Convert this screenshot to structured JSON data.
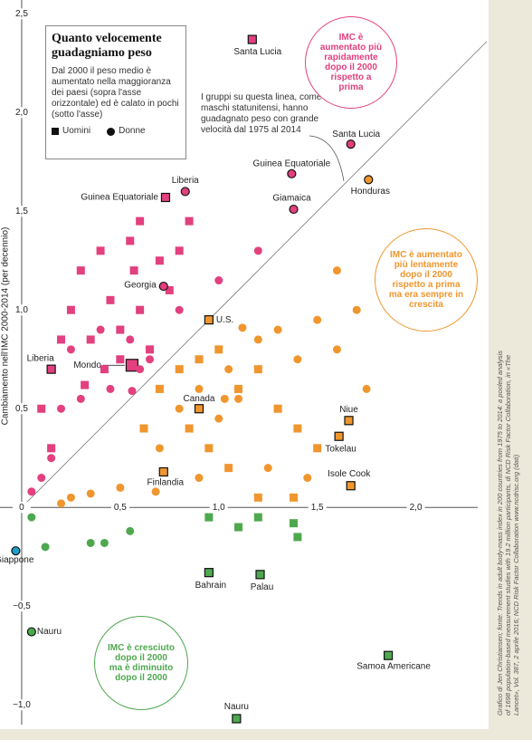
{
  "chart_data": {
    "type": "scatter",
    "title": "Quanto velocemente guadagniamo peso",
    "subtitle": "Dal 2000 il peso medio è aumentato nella maggioranza dei paesi (sopra l'asse orizzontale) ed è calato in pochi (sotto l'asse)",
    "y_label": "Cambiamento nell'IMC 2000-2014 (per decennio)",
    "annotations": {
      "diagonal": "I gruppi su questa linea, come i maschi statunitensi, hanno guadagnato peso con grande velocità dal 1975 al 2014",
      "faster": "IMC è aumentato più rapidamente dopo il 2000 rispetto a prima",
      "slower": "IMC è aumentato più lentamente dopo il 2000 rispetto a prima ma era sempre in crescita",
      "decreased": "IMC è cresciuto dopo il 2000 ma è diminuito dopo il 2000"
    },
    "credit": "Grafico di Jen Christiansen; fonte: Trends in adult body-mass index in 200 countries from 1975 to 2014: a pooled analysis of 1698 population-based measurement studies with 19.2 million participants, di NCD Risk Factor Collaboration, in «The Lancet», Vol. 387, 2 aprile 2016; NCD Risk Factor Collaboration www.ncdrisc.org (dati)",
    "colors": {
      "faster": "#e2407f",
      "slower": "#f0962e",
      "decreased": "#4ea84f",
      "lost": "#1e9fc9"
    },
    "xlim": [
      -0.11,
      2.36
    ],
    "ylim": [
      -1.1,
      2.57
    ],
    "xticks": [
      {
        "value": 0.5,
        "label": "0,5"
      },
      {
        "value": 1,
        "label": "1,0"
      },
      {
        "value": 1.5,
        "label": "1,5"
      },
      {
        "value": 2,
        "label": "2,0"
      }
    ],
    "yticks": [
      {
        "value": 2.5,
        "label": "2,5"
      },
      {
        "value": 2,
        "label": "2,0"
      },
      {
        "value": 1.5,
        "label": "1,5"
      },
      {
        "value": 1,
        "label": "1,0"
      },
      {
        "value": 0.5,
        "label": "0,5"
      },
      0,
      {
        "value": -0.5,
        "label": "−0,5"
      },
      {
        "value": -1,
        "label": "−1,0"
      }
    ],
    "series": [
      {
        "name": "Uomini",
        "marker": "square",
        "x": [
          1.17,
          0.73,
          0.95,
          0.56,
          0.15,
          0.9,
          0.72,
          1.66,
          1.61,
          1.67,
          0.95,
          1.21,
          1.86,
          1.09,
          0.57,
          0.25,
          0.3,
          0.35,
          0.4,
          0.45,
          0.5,
          0.55,
          0.6,
          0.65,
          0.7,
          0.75,
          0.8,
          0.5,
          0.42,
          0.1,
          0.15,
          0.32,
          0.85,
          0.2,
          0.6,
          0.7,
          0.8,
          0.9,
          1.0,
          1.1,
          1.2,
          1.3,
          1.4,
          0.85,
          0.95,
          1.05,
          1.5,
          1.2,
          1.38,
          0.62,
          1.1,
          1.4,
          1.38,
          1.2,
          0.95
        ],
        "values": [
          2.37,
          1.57,
          0.95,
          0.72,
          0.7,
          0.5,
          0.18,
          0.44,
          0.36,
          0.11,
          -0.33,
          -0.34,
          -0.75,
          -1.07,
          1.2,
          1.0,
          1.2,
          0.85,
          1.3,
          1.05,
          0.9,
          1.35,
          1.0,
          0.8,
          1.25,
          1.1,
          1.3,
          0.75,
          0.7,
          0.5,
          0.3,
          0.62,
          1.45,
          0.85,
          1.45,
          0.6,
          0.7,
          0.75,
          0.8,
          0.6,
          0.7,
          0.5,
          0.4,
          0.4,
          0.3,
          0.2,
          0.3,
          0.05,
          0.05,
          0.4,
          -0.1,
          -0.15,
          -0.08,
          -0.05,
          -0.05
        ],
        "labels": [
          "Santa Lucia",
          "Guinea Equatoriale",
          "U.S.",
          "Mondo",
          "Liberia",
          "Canada",
          "Finlandia",
          "Niue",
          "Tokelau",
          "Isole Cook",
          "Bahrain",
          "Palau",
          "Samoa Americane",
          "Nauru",
          null,
          null,
          null,
          null,
          null,
          null,
          null,
          null,
          null,
          null,
          null,
          null,
          null,
          null,
          null,
          null,
          null,
          null,
          null,
          null,
          null,
          null,
          null,
          null,
          null,
          null,
          null,
          null,
          null,
          null,
          null,
          null,
          null,
          null,
          null,
          null,
          null,
          null,
          null,
          null,
          null
        ]
      },
      {
        "name": "Donne",
        "marker": "circle",
        "x": [
          1.67,
          1.37,
          1.76,
          0.83,
          1.38,
          0.72,
          -0.03,
          0.05,
          1.12,
          0.56,
          1.03,
          0.68,
          0.05,
          0.1,
          0.15,
          0.2,
          0.25,
          0.3,
          0.4,
          0.45,
          0.55,
          0.6,
          0.65,
          0.8,
          1.0,
          1.2,
          0.2,
          0.25,
          0.35,
          0.5,
          0.7,
          0.8,
          0.9,
          1.0,
          1.1,
          1.2,
          1.3,
          1.4,
          1.5,
          1.6,
          1.7,
          1.6,
          1.25,
          1.45,
          0.9,
          1.05,
          1.75,
          0.12,
          0.35,
          0.42,
          0.55,
          0.05
        ],
        "values": [
          1.84,
          1.69,
          1.66,
          1.6,
          1.51,
          1.12,
          -0.22,
          -0.63,
          0.91,
          0.59,
          0.55,
          0.08,
          0.08,
          0.15,
          0.25,
          0.5,
          0.8,
          0.55,
          0.9,
          0.6,
          0.85,
          0.7,
          0.75,
          1.0,
          1.15,
          1.3,
          0.02,
          0.05,
          0.07,
          0.1,
          0.3,
          0.5,
          0.6,
          0.45,
          0.55,
          0.85,
          0.9,
          0.75,
          0.95,
          0.8,
          1.0,
          1.2,
          0.2,
          0.15,
          0.15,
          0.7,
          0.6,
          -0.2,
          -0.18,
          -0.18,
          -0.12,
          -0.05
        ],
        "labels": [
          "Santa Lucia",
          "Guinea Equatoriale",
          "Honduras",
          "Liberia",
          "Giamaica",
          "Georgia",
          "Giappone",
          "Nauru",
          null,
          null,
          null,
          null,
          null,
          null,
          null,
          null,
          null,
          null,
          null,
          null,
          null,
          null,
          null,
          null,
          null,
          null,
          null,
          null,
          null,
          null,
          null,
          null,
          null,
          null,
          null,
          null,
          null,
          null,
          null,
          null,
          null,
          null,
          null,
          null,
          null,
          null,
          null,
          null,
          null,
          null,
          null,
          null
        ]
      }
    ]
  }
}
